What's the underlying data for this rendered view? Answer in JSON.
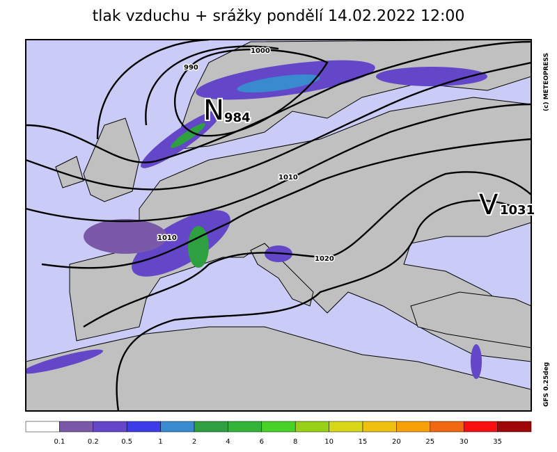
{
  "title": "tlak vzduchu + srážky pondělí 14.02.2022 12:00",
  "isobar_labels": [
    "1000",
    "990",
    "1010",
    "1010",
    "1020"
  ],
  "pressure_centers": [
    {
      "letter": "N",
      "value": "984"
    },
    {
      "letter": "V",
      "value": "1031"
    }
  ],
  "copyright": "(c) METEOPRESS",
  "model": "GFS 0.25deg",
  "colorbar": {
    "colors": [
      "#ffffff",
      "#7a5aa8",
      "#6446c8",
      "#3c3ce8",
      "#3a8ad0",
      "#2ea040",
      "#34b438",
      "#48d228",
      "#98d018",
      "#d8d818",
      "#f0c010",
      "#f8a008",
      "#f06810",
      "#f81010",
      "#a00808"
    ],
    "labels": [
      "0.1",
      "0.2",
      "0.5",
      "1",
      "2",
      "4",
      "6",
      "8",
      "10",
      "15",
      "20",
      "25",
      "30",
      "35"
    ]
  }
}
